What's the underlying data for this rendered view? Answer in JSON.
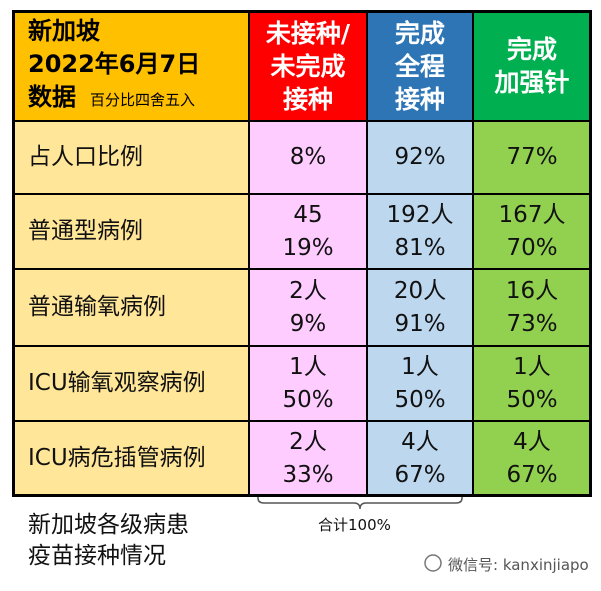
{
  "header": {
    "title_lines": [
      "新加坡",
      "2022年6月7日",
      "数据"
    ],
    "note": "百分比四舍五入",
    "columns": [
      [
        "未接种/",
        "未完成",
        "接种"
      ],
      [
        "完成",
        "全程",
        "接种"
      ],
      [
        "完成",
        "加强针"
      ]
    ]
  },
  "table": {
    "rows": [
      {
        "label": "占人口比例",
        "cells": [
          [
            "8%"
          ],
          [
            "92%"
          ],
          [
            "77%"
          ]
        ]
      },
      {
        "label": "普通型病例",
        "cells": [
          [
            "45",
            "19%"
          ],
          [
            "192人",
            "81%"
          ],
          [
            "167人",
            "70%"
          ]
        ]
      },
      {
        "label": "普通输氧病例",
        "cells": [
          [
            "2人",
            "9%"
          ],
          [
            "20人",
            "91%"
          ],
          [
            "16人",
            "73%"
          ]
        ]
      },
      {
        "label": "ICU输氧观察病例",
        "cells": [
          [
            "1人",
            "50%"
          ],
          [
            "1人",
            "50%"
          ],
          [
            "1人",
            "50%"
          ]
        ]
      },
      {
        "label": "ICU病危插管病例",
        "cells": [
          [
            "2人",
            "33%"
          ],
          [
            "4人",
            "67%"
          ],
          [
            "4人",
            "67%"
          ]
        ]
      }
    ]
  },
  "footer": {
    "caption_lines": [
      "新加坡各级病患",
      "疫苗接种情况"
    ],
    "brace_label": "合计100%",
    "watermark": "微信号: kanxinjiapo"
  }
}
